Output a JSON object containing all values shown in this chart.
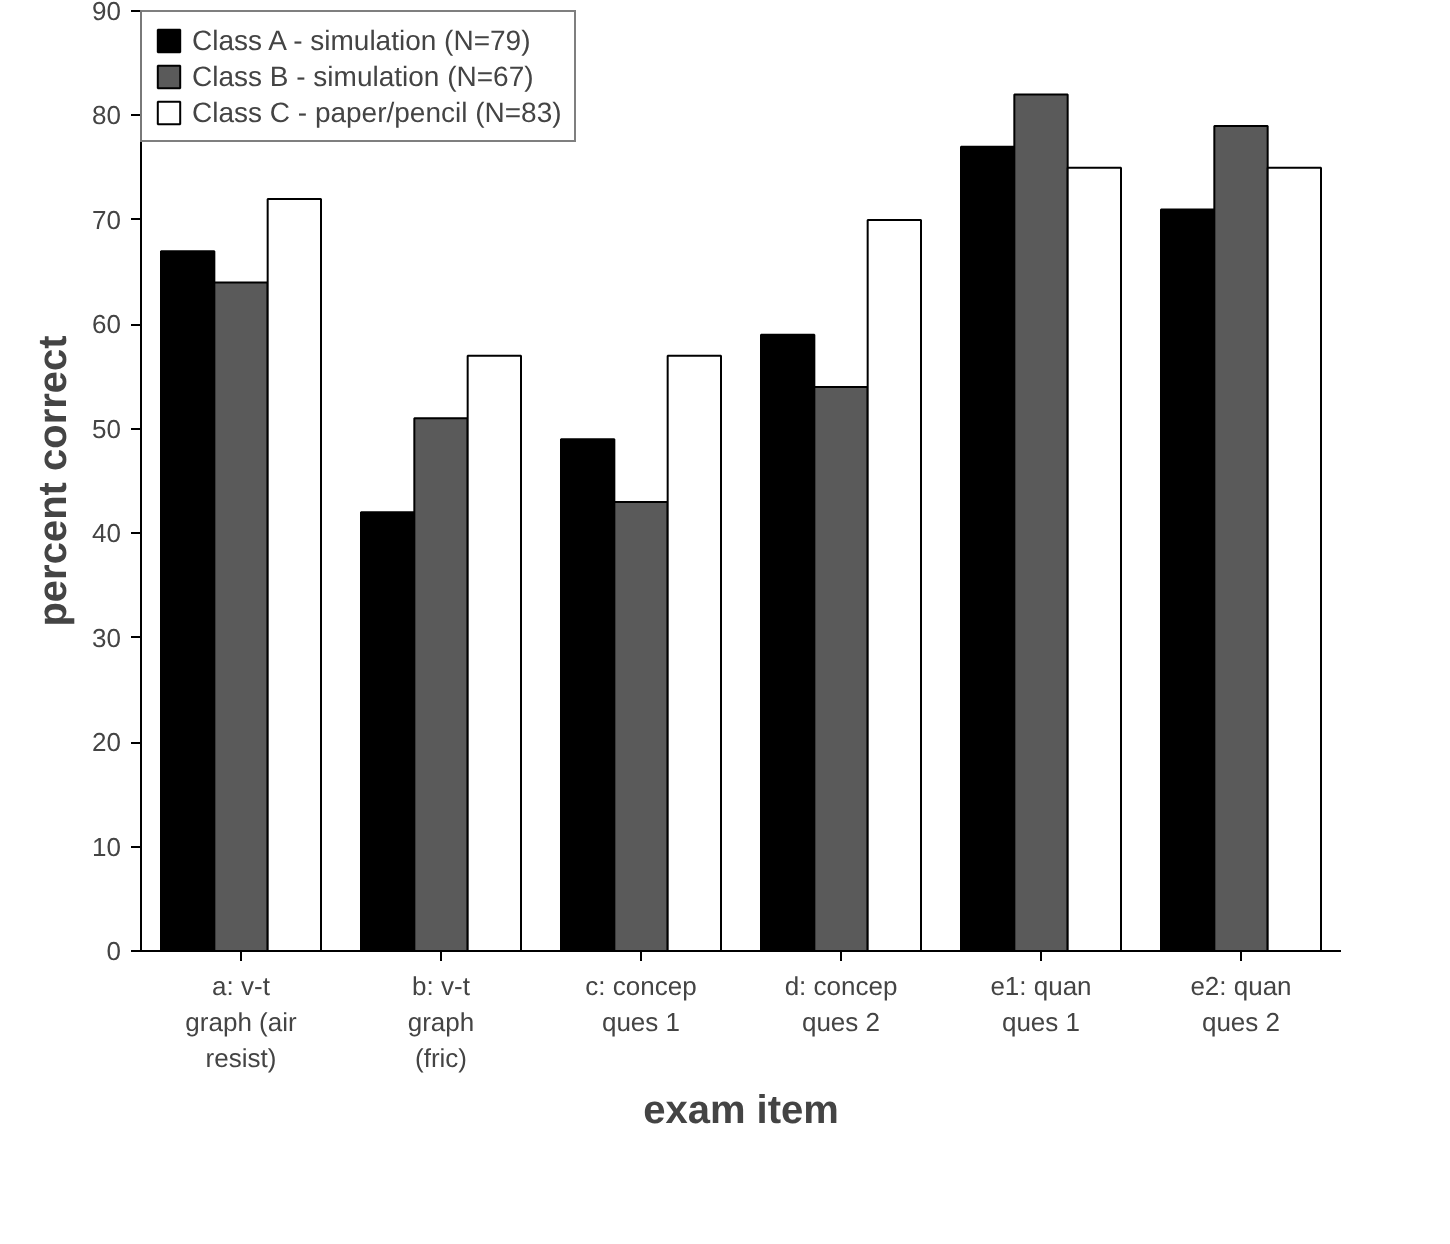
{
  "chart_data": {
    "type": "bar",
    "xlabel": "exam item",
    "ylabel": "percent correct",
    "categories": [
      "a: v-t graph (air resist)",
      "b: v-t graph (fric)",
      "c: concep ques 1",
      "d: concep ques 2",
      "e1: quan ques 1",
      "e2: quan ques 2"
    ],
    "series": [
      {
        "name": "Class A - simulation (N=79)",
        "color": "#000000",
        "values": [
          67,
          42,
          49,
          59,
          77,
          71
        ]
      },
      {
        "name": "Class B - simulation (N=67)",
        "color": "#5a5a5a",
        "values": [
          64,
          51,
          43,
          54,
          82,
          79
        ]
      },
      {
        "name": "Class C - paper/pencil (N=83)",
        "color": "#ffffff",
        "values": [
          72,
          57,
          57,
          70,
          75,
          75
        ]
      }
    ],
    "ylim": [
      0,
      90
    ],
    "yticks": [
      0,
      10,
      20,
      30,
      40,
      50,
      60,
      70,
      80,
      90
    ],
    "grid": false,
    "legend": "top left"
  }
}
